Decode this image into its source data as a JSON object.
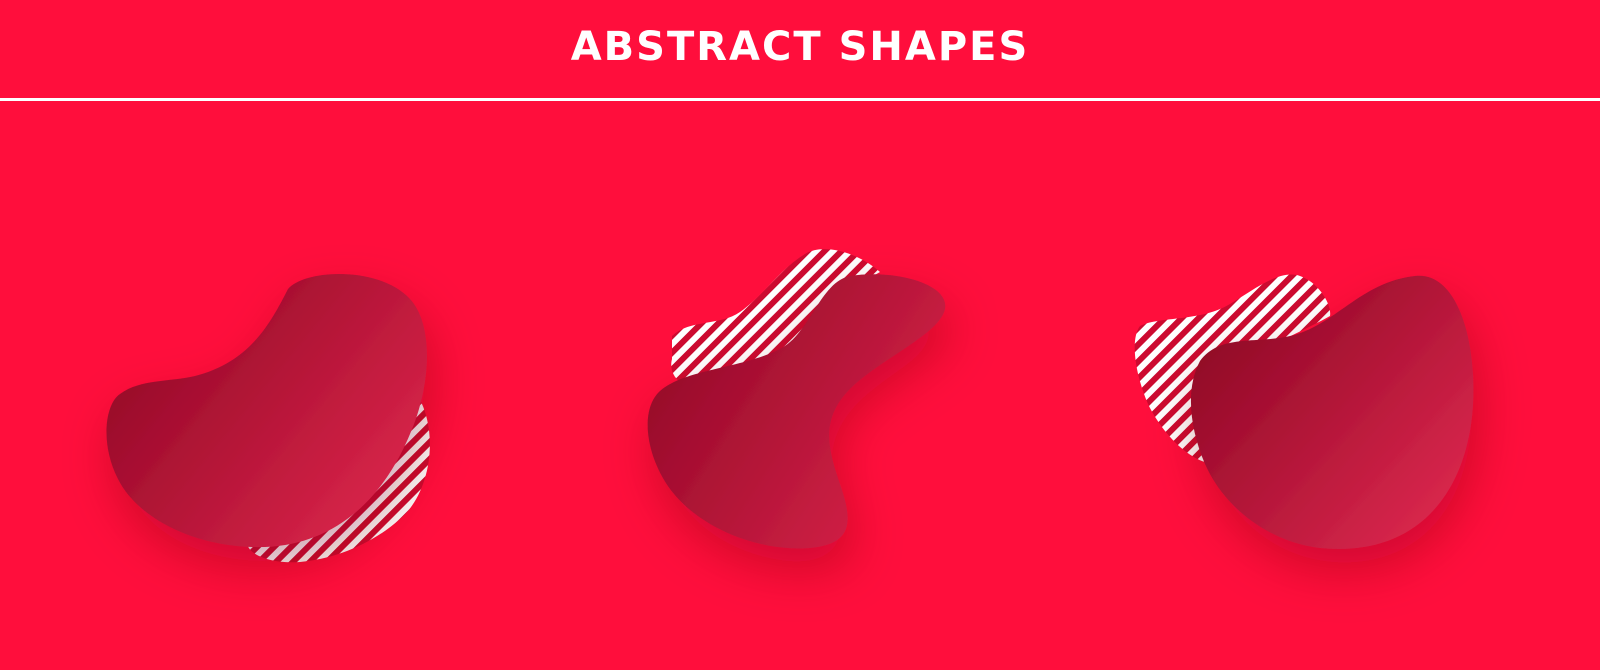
{
  "header": {
    "title": "ABSTRACT SHAPES"
  },
  "colors": {
    "background": "#ff0e3c",
    "blob_dark": "#8f0625",
    "blob_light": "#e2284e",
    "stripe": "#ffffff",
    "divider": "#ffffff"
  },
  "shapes": [
    {
      "name": "abstract-shape-1"
    },
    {
      "name": "abstract-shape-2"
    },
    {
      "name": "abstract-shape-3"
    }
  ]
}
